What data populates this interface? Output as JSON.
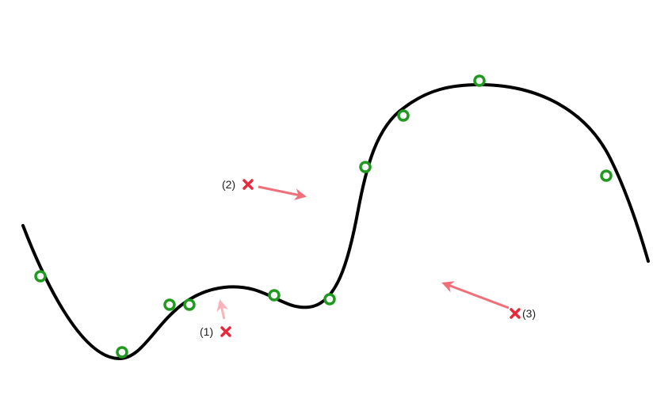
{
  "colors": {
    "curve": "#000000",
    "control_point": "#1f9a1f",
    "marker": "#e8293c",
    "arrow_strong": "#f0707a",
    "arrow_light": "#f7b5ba"
  },
  "markers": [
    {
      "label": "(1)",
      "icon": "x-mark-icon"
    },
    {
      "label": "(2)",
      "icon": "x-mark-icon"
    },
    {
      "label": "(3)",
      "icon": "x-mark-icon"
    }
  ]
}
